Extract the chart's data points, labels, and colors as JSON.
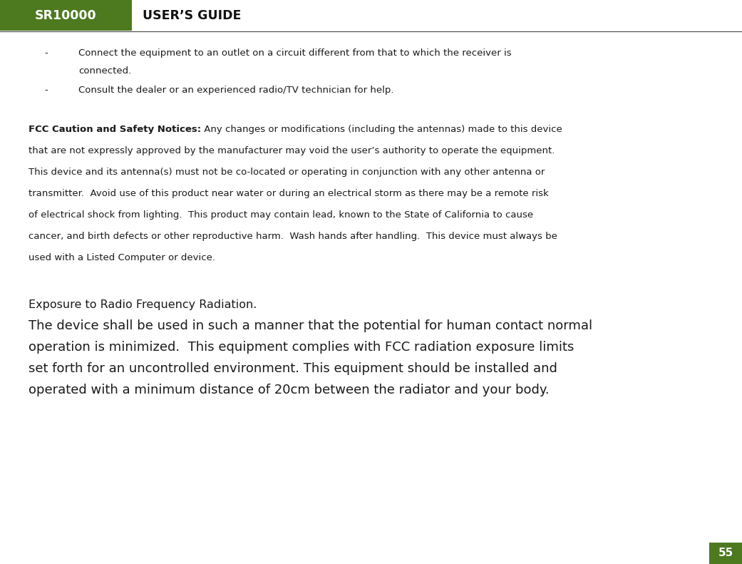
{
  "header_green_color": "#4d7a1f",
  "header_text_sr": "SR10000",
  "header_text_guide": "USER’S GUIDE",
  "page_number": "55",
  "bg_color": "#ffffff",
  "text_color": "#1a1a1a",
  "bullet1_line1": "Connect the equipment to an outlet on a circuit different from that to which the receiver is",
  "bullet1_line2": "connected.",
  "bullet2": "Consult the dealer or an experienced radio/TV technician for help.",
  "fcc_bold": "FCC Caution and Safety Notices:",
  "fcc_lines": [
    [
      "FCC Caution and Safety Notices:",
      " Any changes or modifications (including the antennas) made to this device"
    ],
    [
      "",
      "that are not expressly approved by the manufacturer may void the user’s authority to operate the equipment."
    ],
    [
      "",
      "This device and its antenna(s) must not be co-located or operating in conjunction with any other antenna or"
    ],
    [
      "",
      "transmitter.  Avoid use of this product near water or during an electrical storm as there may be a remote risk"
    ],
    [
      "",
      "of electrical shock from lighting.  This product may contain lead, known to the State of California to cause"
    ],
    [
      "",
      "cancer, and birth defects or other reproductive harm.  Wash hands after handling.  This device must always be"
    ],
    [
      "",
      "used with a Listed Computer or device."
    ]
  ],
  "exposure_title": "Exposure to Radio Frequency Radiation.",
  "exposure_lines": [
    "The device shall be used in such a manner that the potential for human contact normal",
    "operation is minimized.  This equipment complies with FCC radiation exposure limits",
    "set forth for an uncontrolled environment. This equipment should be installed and",
    "operated with a minimum distance of 20cm between the radiator and your body."
  ],
  "header_green_color2": "#5a8a1f",
  "line_color": "#888888"
}
